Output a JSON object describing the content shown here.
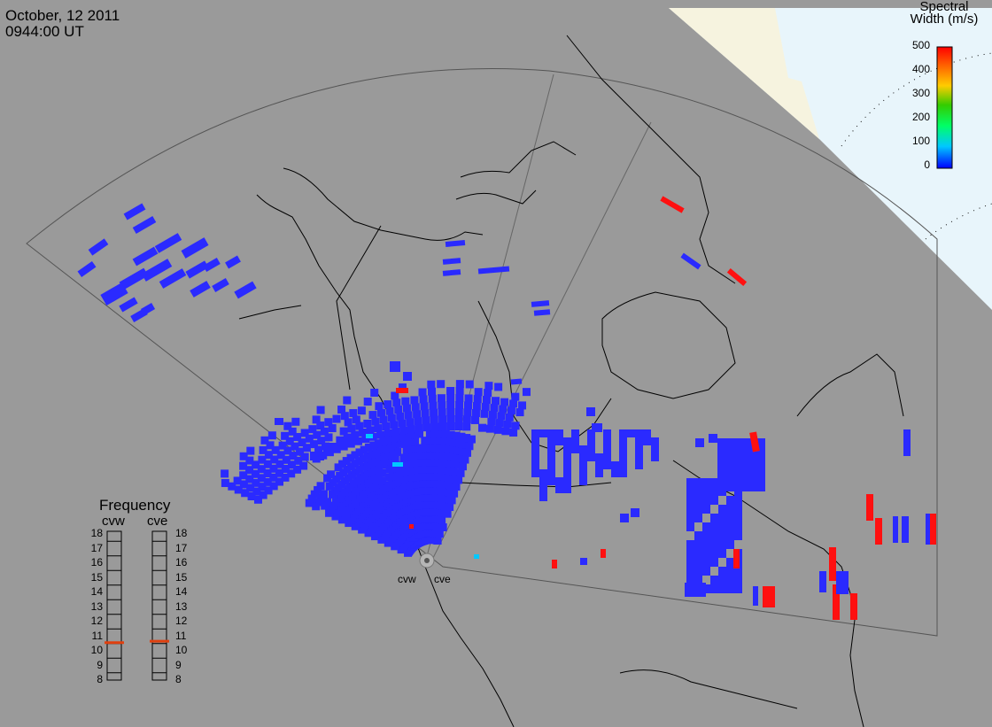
{
  "header": {
    "date": "October, 12 2011",
    "time": "0944:00 UT"
  },
  "colorbar": {
    "title_line1": "Spectral",
    "title_line2": "Width (m/s)",
    "ticks": [
      "500",
      "400",
      "300",
      "200",
      "100",
      "0"
    ],
    "colors": [
      "#0000ff",
      "#00c8ff",
      "#00ff66",
      "#33cc00",
      "#ffcc00",
      "#ff6600",
      "#ff0000"
    ]
  },
  "frequency_panel": {
    "title": "Frequency",
    "radars": [
      "cvw",
      "cve"
    ],
    "scale": [
      "18",
      "17",
      "16",
      "15",
      "14",
      "13",
      "12",
      "11",
      "10",
      "9",
      "8"
    ],
    "current_mhz": [
      10.5,
      10.6
    ]
  },
  "radar_site": {
    "labels": [
      "cvw",
      "cve"
    ]
  },
  "colors": {
    "background": "#9a9a9a",
    "low_width": "#2a2aff",
    "high_width": "#ff1010",
    "coastline": "#000000",
    "fov": "#555555",
    "sea_ice": "#e8f5fb",
    "polar_cream": "#f6f3df"
  }
}
